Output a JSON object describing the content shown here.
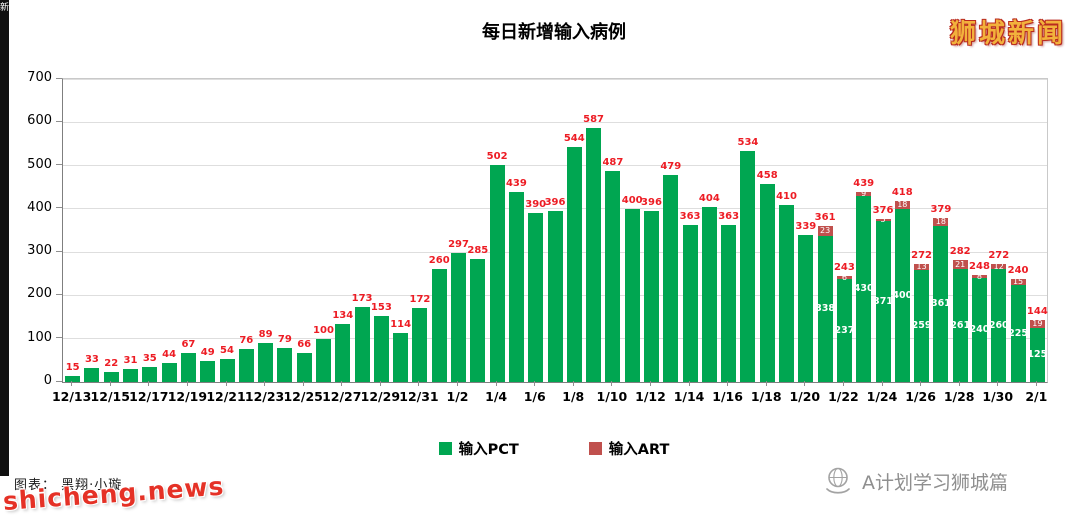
{
  "header": {
    "site_logo": "狮城新闻"
  },
  "left_strip": {
    "glyph": "新"
  },
  "chart_data": {
    "type": "bar",
    "stacked": true,
    "title": "每日新增输入病例",
    "grid": true,
    "legend_position": "bottom",
    "ylim": [
      0,
      700
    ],
    "yticks": [
      0,
      100,
      200,
      300,
      400,
      500,
      600,
      700
    ],
    "x": [
      "12/13",
      "12/14",
      "12/15",
      "12/16",
      "12/17",
      "12/18",
      "12/19",
      "12/20",
      "12/21",
      "12/22",
      "12/23",
      "12/24",
      "12/25",
      "12/26",
      "12/27",
      "12/28",
      "12/29",
      "12/30",
      "12/31",
      "1/1",
      "1/2",
      "1/3",
      "1/4",
      "1/5",
      "1/6",
      "1/7",
      "1/8",
      "1/9",
      "1/10",
      "1/11",
      "1/12",
      "1/13",
      "1/14",
      "1/15",
      "1/16",
      "1/17",
      "1/18",
      "1/19",
      "1/20",
      "1/21",
      "1/22",
      "1/23",
      "1/24",
      "1/25",
      "1/26",
      "1/27",
      "1/28",
      "1/29",
      "1/30",
      "1/31",
      "2/1"
    ],
    "x_tick_labels": [
      "12/13",
      "12/15",
      "12/17",
      "12/19",
      "12/21",
      "12/23",
      "12/25",
      "12/27",
      "12/29",
      "12/31",
      "1/2",
      "1/4",
      "1/6",
      "1/8",
      "1/10",
      "1/12",
      "1/14",
      "1/16",
      "1/18",
      "1/20",
      "1/22",
      "1/24",
      "1/26",
      "1/28",
      "1/30",
      "2/1"
    ],
    "series": [
      {
        "name": "输入PCT",
        "color": "#00a651",
        "values": [
          15,
          33,
          22,
          31,
          35,
          44,
          67,
          49,
          54,
          76,
          89,
          79,
          66,
          100,
          134,
          173,
          153,
          114,
          172,
          260,
          297,
          285,
          502,
          439,
          390,
          396,
          544,
          587,
          487,
          400,
          396,
          479,
          363,
          404,
          363,
          534,
          458,
          410,
          339,
          338,
          237,
          430,
          371,
          400,
          259,
          361,
          261,
          240,
          260,
          225,
          125
        ]
      },
      {
        "name": "输入ART",
        "color": "#c0504d",
        "values": [
          0,
          0,
          0,
          0,
          0,
          0,
          0,
          0,
          0,
          0,
          0,
          0,
          0,
          0,
          0,
          0,
          0,
          0,
          0,
          0,
          0,
          0,
          0,
          0,
          0,
          0,
          0,
          0,
          0,
          0,
          0,
          0,
          0,
          0,
          0,
          0,
          0,
          0,
          0,
          23,
          6,
          9,
          5,
          18,
          13,
          18,
          21,
          8,
          12,
          15,
          19
        ]
      }
    ],
    "totals": [
      15,
      33,
      22,
      31,
      35,
      44,
      67,
      49,
      54,
      76,
      89,
      79,
      66,
      100,
      134,
      173,
      153,
      114,
      172,
      260,
      297,
      285,
      502,
      439,
      390,
      396,
      544,
      587,
      487,
      400,
      396,
      479,
      363,
      404,
      363,
      534,
      458,
      410,
      339,
      361,
      243,
      439,
      376,
      418,
      272,
      379,
      282,
      248,
      272,
      240,
      144
    ],
    "label_color": "#ed1c24"
  },
  "footer": {
    "caption": "图表：  黑翔·小璇",
    "watermark": "shicheng.news",
    "account_name": "A计划学习狮城篇"
  }
}
